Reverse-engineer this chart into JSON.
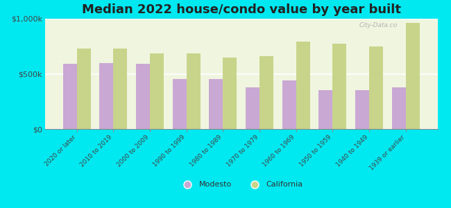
{
  "title": "Median 2022 house/condo value by year built",
  "categories": [
    "2020 or later",
    "2010 to 2019",
    "2000 to 2009",
    "1990 to 1999",
    "1980 to 1989",
    "1970 to 1979",
    "1960 to 1969",
    "1950 to 1959",
    "1940 to 1949",
    "1939 or earlier"
  ],
  "modesto_values": [
    590000,
    595000,
    590000,
    455000,
    450000,
    375000,
    440000,
    355000,
    350000,
    380000
  ],
  "california_values": [
    730000,
    730000,
    685000,
    685000,
    650000,
    660000,
    790000,
    775000,
    750000,
    960000
  ],
  "modesto_color": "#c9a8d4",
  "california_color": "#c8d48a",
  "background_outer": "#00e8f0",
  "background_inner": "#f0f5e0",
  "bar_width": 0.38,
  "ylim": [
    0,
    1000000
  ],
  "yticks": [
    0,
    500000,
    1000000
  ],
  "ytick_labels": [
    "$0",
    "$500k",
    "$1,000k"
  ],
  "title_fontsize": 13,
  "legend_labels": [
    "Modesto",
    "California"
  ],
  "watermark": "City-Data.co"
}
